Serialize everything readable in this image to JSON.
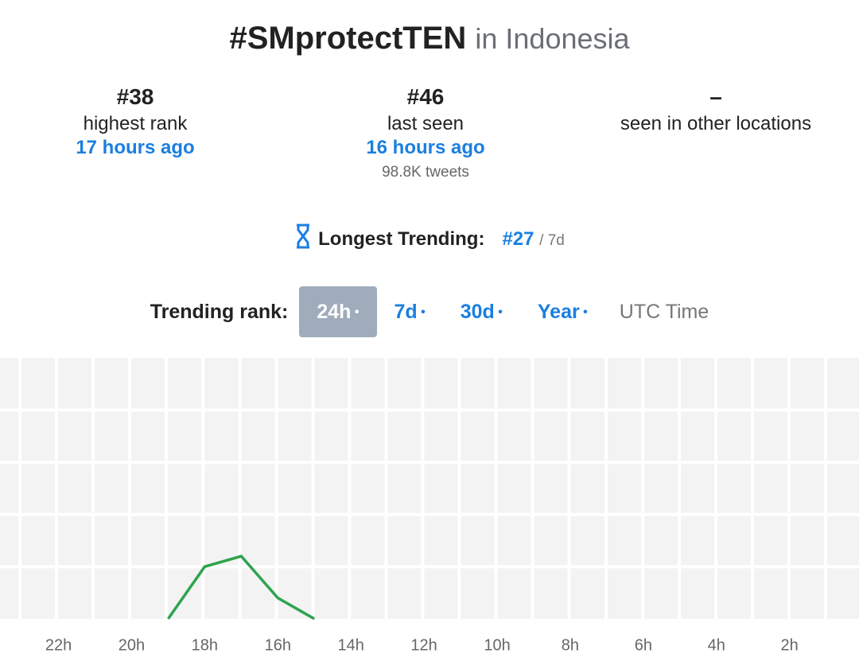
{
  "header": {
    "hashtag": "#SMprotectTEN",
    "location": "in Indonesia"
  },
  "stats": [
    {
      "value": "#38",
      "label": "highest rank",
      "time": "17 hours ago"
    },
    {
      "value": "#46",
      "label": "last seen",
      "time": "16 hours ago",
      "tweets": "98.8K tweets"
    },
    {
      "value": "–",
      "label": "seen in other locations"
    }
  ],
  "longest": {
    "label": "Longest Trending:",
    "rank": "#27",
    "period": "/ 7d"
  },
  "tabs": {
    "label": "Trending rank:",
    "options": [
      "24h",
      "7d",
      "30d",
      "Year"
    ],
    "timezone": "UTC Time"
  },
  "chart_data": {
    "type": "line",
    "x": [
      19,
      18,
      17,
      16,
      15
    ],
    "values": [
      50,
      40,
      38,
      46,
      50
    ],
    "color": "#2ea44f",
    "xlim": [
      23.6,
      0.1
    ],
    "xticks": [
      {
        "value": 22,
        "label": "22h"
      },
      {
        "value": 20,
        "label": "20h"
      },
      {
        "value": 18,
        "label": "18h"
      },
      {
        "value": 16,
        "label": "16h"
      },
      {
        "value": 14,
        "label": "14h"
      },
      {
        "value": 12,
        "label": "12h"
      },
      {
        "value": 10,
        "label": "10h"
      },
      {
        "value": 8,
        "label": "8h"
      },
      {
        "value": 6,
        "label": "6h"
      },
      {
        "value": 4,
        "label": "4h"
      },
      {
        "value": 2,
        "label": "2h"
      }
    ],
    "ylim": [
      0,
      50
    ],
    "y_inverted": true,
    "yticks": [
      10,
      20,
      30,
      40
    ],
    "grid": true
  }
}
